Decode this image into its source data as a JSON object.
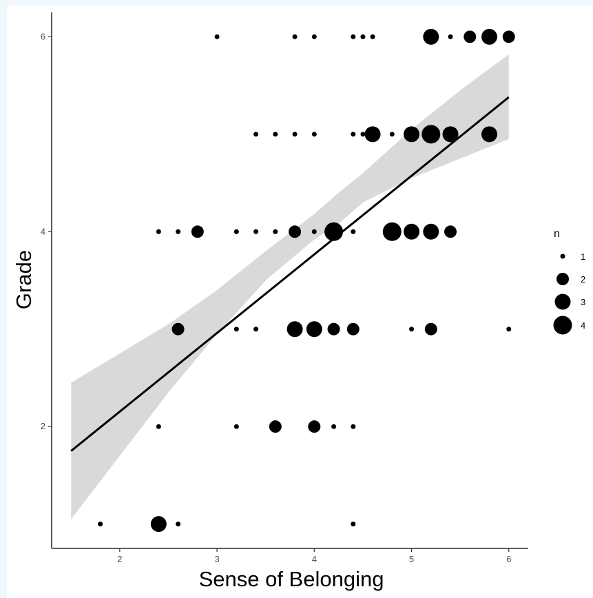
{
  "chart_data": {
    "type": "scatter",
    "xlabel": "Sense of Belonging",
    "ylabel": "Grade",
    "xlim": [
      1.3,
      6.2
    ],
    "ylim": [
      0.75,
      6.25
    ],
    "x_ticks": [
      "2",
      "3",
      "4",
      "5",
      "6"
    ],
    "y_ticks": [
      "2",
      "4",
      "6"
    ],
    "grid": false,
    "legend": {
      "title": "n",
      "position": "right",
      "entries": [
        "1",
        "2",
        "3",
        "4"
      ]
    },
    "colors": {
      "points": "#000000",
      "line": "#000000",
      "ribbon": "#d9d9d9"
    },
    "points": [
      {
        "x": 3.0,
        "y": 6,
        "n": 1
      },
      {
        "x": 3.8,
        "y": 6,
        "n": 1
      },
      {
        "x": 4.0,
        "y": 6,
        "n": 1
      },
      {
        "x": 4.4,
        "y": 6,
        "n": 1
      },
      {
        "x": 4.5,
        "y": 6,
        "n": 1
      },
      {
        "x": 4.6,
        "y": 6,
        "n": 1
      },
      {
        "x": 5.2,
        "y": 6,
        "n": 3
      },
      {
        "x": 5.4,
        "y": 6,
        "n": 1
      },
      {
        "x": 5.6,
        "y": 6,
        "n": 2
      },
      {
        "x": 5.8,
        "y": 6,
        "n": 3
      },
      {
        "x": 6.0,
        "y": 6,
        "n": 2
      },
      {
        "x": 3.4,
        "y": 5,
        "n": 1
      },
      {
        "x": 3.6,
        "y": 5,
        "n": 1
      },
      {
        "x": 3.8,
        "y": 5,
        "n": 1
      },
      {
        "x": 4.0,
        "y": 5,
        "n": 1
      },
      {
        "x": 4.4,
        "y": 5,
        "n": 1
      },
      {
        "x": 4.5,
        "y": 5,
        "n": 1
      },
      {
        "x": 4.6,
        "y": 5,
        "n": 3
      },
      {
        "x": 4.8,
        "y": 5,
        "n": 1
      },
      {
        "x": 5.0,
        "y": 5,
        "n": 3
      },
      {
        "x": 5.2,
        "y": 5,
        "n": 4
      },
      {
        "x": 5.4,
        "y": 5,
        "n": 3
      },
      {
        "x": 5.8,
        "y": 5,
        "n": 3
      },
      {
        "x": 2.4,
        "y": 4,
        "n": 1
      },
      {
        "x": 2.6,
        "y": 4,
        "n": 1
      },
      {
        "x": 2.8,
        "y": 4,
        "n": 2
      },
      {
        "x": 3.2,
        "y": 4,
        "n": 1
      },
      {
        "x": 3.4,
        "y": 4,
        "n": 1
      },
      {
        "x": 3.6,
        "y": 4,
        "n": 1
      },
      {
        "x": 3.8,
        "y": 4,
        "n": 2
      },
      {
        "x": 4.0,
        "y": 4,
        "n": 1
      },
      {
        "x": 4.2,
        "y": 4,
        "n": 4
      },
      {
        "x": 4.4,
        "y": 4,
        "n": 1
      },
      {
        "x": 4.8,
        "y": 4,
        "n": 4
      },
      {
        "x": 5.0,
        "y": 4,
        "n": 3
      },
      {
        "x": 5.2,
        "y": 4,
        "n": 3
      },
      {
        "x": 5.4,
        "y": 4,
        "n": 2
      },
      {
        "x": 2.6,
        "y": 3,
        "n": 2
      },
      {
        "x": 3.2,
        "y": 3,
        "n": 1
      },
      {
        "x": 3.4,
        "y": 3,
        "n": 1
      },
      {
        "x": 3.8,
        "y": 3,
        "n": 3
      },
      {
        "x": 4.0,
        "y": 3,
        "n": 3
      },
      {
        "x": 4.2,
        "y": 3,
        "n": 2
      },
      {
        "x": 4.4,
        "y": 3,
        "n": 2
      },
      {
        "x": 5.0,
        "y": 3,
        "n": 1
      },
      {
        "x": 5.2,
        "y": 3,
        "n": 2
      },
      {
        "x": 6.0,
        "y": 3,
        "n": 1
      },
      {
        "x": 2.4,
        "y": 2,
        "n": 1
      },
      {
        "x": 3.2,
        "y": 2,
        "n": 1
      },
      {
        "x": 3.6,
        "y": 2,
        "n": 2
      },
      {
        "x": 4.0,
        "y": 2,
        "n": 2
      },
      {
        "x": 4.2,
        "y": 2,
        "n": 1
      },
      {
        "x": 4.4,
        "y": 2,
        "n": 1
      },
      {
        "x": 1.8,
        "y": 1,
        "n": 1
      },
      {
        "x": 2.4,
        "y": 1,
        "n": 3
      },
      {
        "x": 2.6,
        "y": 1,
        "n": 1
      },
      {
        "x": 4.4,
        "y": 1,
        "n": 1
      }
    ],
    "fit_line": {
      "x": [
        1.5,
        6.0
      ],
      "y": [
        1.75,
        5.38
      ]
    },
    "ribbon": {
      "x": [
        1.5,
        2.0,
        2.5,
        3.0,
        3.5,
        4.0,
        4.25,
        4.5,
        5.0,
        5.5,
        6.0
      ],
      "lower": [
        1.05,
        1.7,
        2.35,
        2.95,
        3.5,
        3.92,
        4.08,
        4.3,
        4.55,
        4.75,
        4.95
      ],
      "upper": [
        2.45,
        2.75,
        3.05,
        3.4,
        3.8,
        4.18,
        4.4,
        4.6,
        5.05,
        5.45,
        5.82
      ]
    }
  }
}
